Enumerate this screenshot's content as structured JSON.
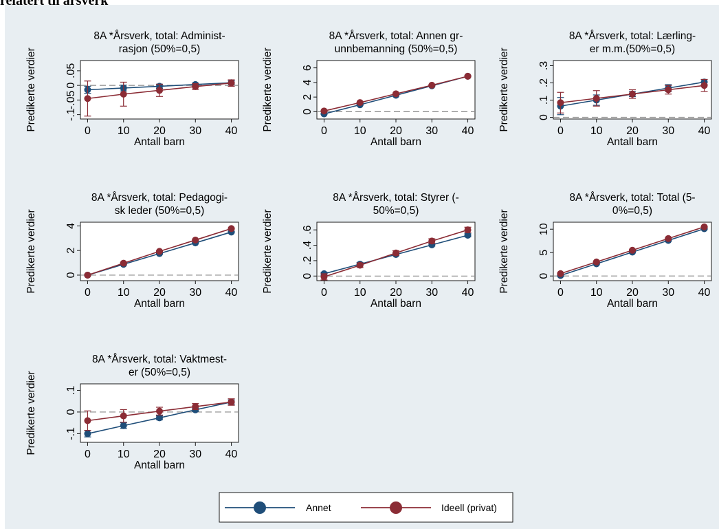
{
  "heading": "relatert til årsverk",
  "legend": {
    "items": [
      {
        "label": "Annet",
        "color": "#1f4e79"
      },
      {
        "label": "Ideell (privat)",
        "color": "#8b2c35"
      }
    ]
  },
  "chart_data": [
    {
      "type": "line",
      "title": [
        "8A *Årsverk, total: Administ-",
        "rasjon (50%=0,5)"
      ],
      "xlabel": "Antall barn",
      "ylabel": "Predikerte verdier",
      "x": [
        0,
        10,
        20,
        30,
        40
      ],
      "xticks": [
        "0",
        "10",
        "20",
        "30",
        "40"
      ],
      "ylim": [
        -0.115,
        0.085
      ],
      "yticks": [
        {
          "v": -0.1,
          "label": "-.1"
        },
        {
          "v": -0.05,
          "label": "-.05"
        },
        {
          "v": 0,
          "label": "0"
        },
        {
          "v": 0.05,
          "label": ".05"
        }
      ],
      "reference_line": 0,
      "series": [
        {
          "name": "Annet",
          "values": [
            -0.015,
            -0.009,
            -0.003,
            0.003,
            0.009
          ],
          "ci_low": [
            -0.027,
            -0.019,
            -0.01,
            -0.002,
            0.002
          ],
          "ci_high": [
            -0.003,
            0.001,
            0.004,
            0.008,
            0.016
          ]
        },
        {
          "name": "Ideell (privat)",
          "values": [
            -0.045,
            -0.03,
            -0.017,
            -0.004,
            0.008
          ],
          "ci_low": [
            -0.105,
            -0.071,
            -0.038,
            -0.014,
            -0.003
          ],
          "ci_high": [
            0.015,
            0.011,
            0.004,
            0.006,
            0.019
          ]
        }
      ]
    },
    {
      "type": "line",
      "title": [
        "8A *Årsverk, total: Annen gr-",
        "unnbemanning (50%=0,5)"
      ],
      "xlabel": "Antall barn",
      "ylabel": "Predikerte verdier",
      "x": [
        0,
        10,
        20,
        30,
        40
      ],
      "xticks": [
        "0",
        "10",
        "20",
        "30",
        "40"
      ],
      "ylim": [
        -1.0,
        7.0
      ],
      "yticks": [
        {
          "v": 0,
          "label": "0"
        },
        {
          "v": 2,
          "label": "2"
        },
        {
          "v": 4,
          "label": "4"
        },
        {
          "v": 6,
          "label": "6"
        }
      ],
      "reference_line": 0,
      "series": [
        {
          "name": "Annet",
          "values": [
            -0.3,
            0.95,
            2.25,
            3.55,
            4.85
          ],
          "ci_low": [
            -0.35,
            0.9,
            2.2,
            3.5,
            4.8
          ],
          "ci_high": [
            -0.25,
            1.0,
            2.3,
            3.6,
            4.9
          ]
        },
        {
          "name": "Ideell (privat)",
          "values": [
            0.1,
            1.25,
            2.45,
            3.62,
            4.85
          ],
          "ci_low": [
            0.05,
            1.2,
            2.4,
            3.57,
            4.8
          ],
          "ci_high": [
            0.15,
            1.3,
            2.5,
            3.67,
            4.9
          ]
        }
      ]
    },
    {
      "type": "line",
      "title": [
        "8A *Årsverk, total: Lærling-",
        "er m.m.(50%=0,5)"
      ],
      "xlabel": "Antall barn",
      "ylabel": "Predikerte verdier",
      "x": [
        0,
        10,
        20,
        30,
        40
      ],
      "xticks": [
        "0",
        "10",
        "20",
        "30",
        "40"
      ],
      "ylim": [
        -0.01,
        0.33
      ],
      "yticks": [
        {
          "v": 0,
          "label": "0"
        },
        {
          "v": 0.1,
          "label": ".1"
        },
        {
          "v": 0.2,
          "label": ".2"
        },
        {
          "v": 0.3,
          "label": ".3"
        }
      ],
      "reference_line": 0,
      "series": [
        {
          "name": "Annet",
          "values": [
            0.065,
            0.1,
            0.135,
            0.17,
            0.205
          ],
          "ci_low": [
            0.015,
            0.07,
            0.12,
            0.15,
            0.19
          ],
          "ci_high": [
            0.115,
            0.13,
            0.15,
            0.19,
            0.22
          ]
        },
        {
          "name": "Ideell (privat)",
          "values": [
            0.085,
            0.11,
            0.135,
            0.16,
            0.185
          ],
          "ci_low": [
            0.025,
            0.065,
            0.11,
            0.135,
            0.15
          ],
          "ci_high": [
            0.145,
            0.155,
            0.16,
            0.185,
            0.22
          ]
        }
      ]
    },
    {
      "type": "line",
      "title": [
        "8A *Årsverk, total: Pedagogi-",
        "sk leder (50%=0,5)"
      ],
      "xlabel": "Antall barn",
      "ylabel": "Predikerte verdier",
      "x": [
        0,
        10,
        20,
        30,
        40
      ],
      "xticks": [
        "0",
        "10",
        "20",
        "30",
        "40"
      ],
      "ylim": [
        -0.45,
        4.3
      ],
      "yticks": [
        {
          "v": 0,
          "label": "0"
        },
        {
          "v": 2,
          "label": "2"
        },
        {
          "v": 4,
          "label": "4"
        }
      ],
      "reference_line": 0,
      "series": [
        {
          "name": "Annet",
          "values": [
            0.0,
            0.88,
            1.75,
            2.62,
            3.5
          ],
          "ci_low": [
            -0.04,
            0.84,
            1.71,
            2.58,
            3.46
          ],
          "ci_high": [
            0.04,
            0.92,
            1.79,
            2.66,
            3.54
          ]
        },
        {
          "name": "Ideell (privat)",
          "values": [
            0.0,
            0.97,
            1.93,
            2.85,
            3.78
          ],
          "ci_low": [
            -0.04,
            0.93,
            1.89,
            2.81,
            3.74
          ],
          "ci_high": [
            0.04,
            1.01,
            1.97,
            2.89,
            3.82
          ]
        }
      ]
    },
    {
      "type": "line",
      "title": [
        "8A *Årsverk, total: Styrer (-",
        "50%=0,5)"
      ],
      "xlabel": "Antall barn",
      "ylabel": "Predikerte verdier",
      "x": [
        0,
        10,
        20,
        30,
        40
      ],
      "xticks": [
        "0",
        "10",
        "20",
        "30",
        "40"
      ],
      "ylim": [
        -0.06,
        0.7
      ],
      "yticks": [
        {
          "v": 0,
          "label": "0"
        },
        {
          "v": 0.2,
          "label": ".2"
        },
        {
          "v": 0.4,
          "label": ".4"
        },
        {
          "v": 0.6,
          "label": ".6"
        }
      ],
      "reference_line": 0,
      "series": [
        {
          "name": "Annet",
          "values": [
            0.03,
            0.155,
            0.28,
            0.405,
            0.53
          ],
          "ci_low": [
            0.01,
            0.135,
            0.265,
            0.39,
            0.51
          ],
          "ci_high": [
            0.05,
            0.175,
            0.295,
            0.42,
            0.55
          ]
        },
        {
          "name": "Ideell (privat)",
          "values": [
            -0.01,
            0.14,
            0.3,
            0.455,
            0.6
          ],
          "ci_low": [
            -0.05,
            0.11,
            0.27,
            0.425,
            0.565
          ],
          "ci_high": [
            0.03,
            0.17,
            0.33,
            0.485,
            0.635
          ]
        }
      ]
    },
    {
      "type": "line",
      "title": [
        "8A *Årsverk, total: Total (5-",
        "0%=0,5)"
      ],
      "xlabel": "Antall barn",
      "ylabel": "Predikerte verdier",
      "x": [
        0,
        10,
        20,
        30,
        40
      ],
      "xticks": [
        "0",
        "10",
        "20",
        "30",
        "40"
      ],
      "ylim": [
        -1.0,
        11.5
      ],
      "yticks": [
        {
          "v": 0,
          "label": "0"
        },
        {
          "v": 5,
          "label": "5"
        },
        {
          "v": 10,
          "label": "10"
        }
      ],
      "reference_line": 0,
      "series": [
        {
          "name": "Annet",
          "values": [
            0.1,
            2.6,
            5.1,
            7.6,
            10.1
          ],
          "ci_low": [
            0.0,
            2.5,
            5.0,
            7.5,
            10.0
          ],
          "ci_high": [
            0.2,
            2.7,
            5.2,
            7.7,
            10.2
          ]
        },
        {
          "name": "Ideell (privat)",
          "values": [
            0.5,
            3.0,
            5.5,
            8.0,
            10.5
          ],
          "ci_low": [
            0.4,
            2.9,
            5.4,
            7.9,
            10.4
          ],
          "ci_high": [
            0.6,
            3.1,
            5.6,
            8.1,
            10.6
          ]
        }
      ]
    },
    {
      "type": "line",
      "title": [
        "8A *Årsverk, total: Vaktmest-",
        "er (50%=0,5)"
      ],
      "xlabel": "Antall barn",
      "ylabel": "Predikerte verdier",
      "x": [
        0,
        10,
        20,
        30,
        40
      ],
      "xticks": [
        "0",
        "10",
        "20",
        "30",
        "40"
      ],
      "ylim": [
        -0.14,
        0.13
      ],
      "yticks": [
        {
          "v": -0.1,
          "label": "-.1"
        },
        {
          "v": 0,
          "label": "0"
        },
        {
          "v": 0.1,
          "label": ".1"
        }
      ],
      "reference_line": 0,
      "series": [
        {
          "name": "Annet",
          "values": [
            -0.1,
            -0.063,
            -0.027,
            0.01,
            0.046
          ],
          "ci_low": [
            -0.115,
            -0.076,
            -0.036,
            0.002,
            0.036
          ],
          "ci_high": [
            -0.085,
            -0.05,
            -0.018,
            0.018,
            0.056
          ]
        },
        {
          "name": "Ideell (privat)",
          "values": [
            -0.04,
            -0.018,
            0.004,
            0.025,
            0.046
          ],
          "ci_low": [
            -0.085,
            -0.047,
            -0.014,
            0.011,
            0.031
          ],
          "ci_high": [
            0.005,
            0.011,
            0.022,
            0.039,
            0.061
          ]
        }
      ]
    }
  ]
}
